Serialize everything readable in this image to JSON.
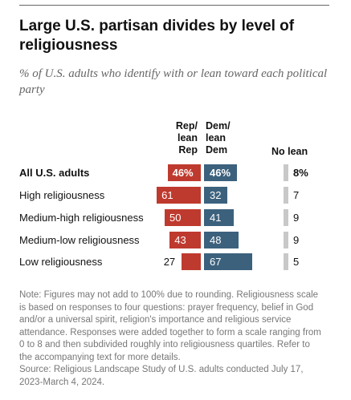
{
  "title": "Large U.S. partisan divides by level of religiousness",
  "subtitle": "% of U.S. adults who identify with or lean toward each political party",
  "columns": {
    "rep": [
      "Rep/",
      "lean",
      "Rep"
    ],
    "dem": [
      "Dem/",
      "lean",
      "Dem"
    ],
    "no_lean": "No lean"
  },
  "colors": {
    "rep": "#bf3a2e",
    "dem": "#3c617d",
    "no_lean": "#c8c8c8"
  },
  "chart_data": {
    "type": "bar",
    "categories": [
      "All U.S. adults",
      "High religiousness",
      "Medium-high religiousness",
      "Medium-low religiousness",
      "Low religiousness"
    ],
    "series": [
      {
        "name": "Rep/lean Rep",
        "values": [
          46,
          61,
          50,
          43,
          27
        ]
      },
      {
        "name": "Dem/lean Dem",
        "values": [
          46,
          32,
          41,
          48,
          67
        ]
      },
      {
        "name": "No lean",
        "values": [
          8,
          7,
          9,
          9,
          5
        ]
      }
    ],
    "value_labels": {
      "rep": [
        "46%",
        "61",
        "50",
        "43",
        "27"
      ],
      "dem": [
        "46%",
        "32",
        "41",
        "48",
        "67"
      ],
      "no_lean": [
        "8%",
        "7",
        "9",
        "9",
        "5"
      ]
    }
  },
  "note": "Note: Figures may not add to 100% due to rounding. Religiousness scale is based on responses to four questions: prayer frequency, belief in God and/or a universal spirit, religion's importance and religious service attendance. Responses were added together to form a scale ranging from 0 to 8 and then subdivided roughly into religiousness quartiles. Refer to the accompanying text for more details.",
  "source": "Source: Religious Landscape Study of U.S. adults conducted July 17, 2023-March 4, 2024."
}
